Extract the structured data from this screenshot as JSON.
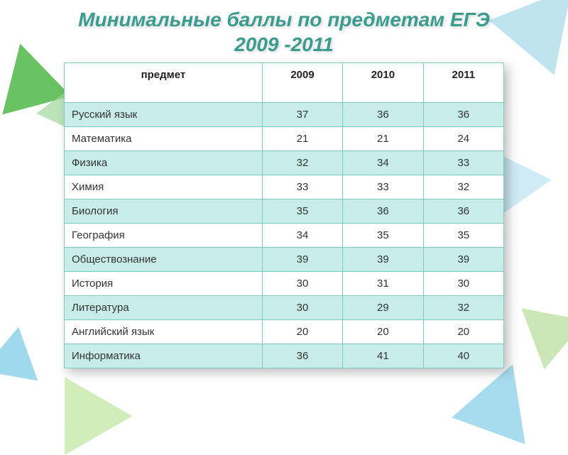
{
  "title_line1": "Минимальные баллы по предметам ЕГЭ",
  "title_line2": "2009 -2011",
  "table": {
    "colors": {
      "band_fill": "#c8ecea",
      "border": "#7fcac0",
      "title_color": "#3a9b8f"
    },
    "columns": [
      "предмет",
      "2009",
      "2010",
      "2011"
    ],
    "rows": [
      [
        "Русский язык",
        "37",
        "36",
        "36"
      ],
      [
        "Математика",
        "21",
        "21",
        "24"
      ],
      [
        "Физика",
        "32",
        "34",
        "33"
      ],
      [
        "Химия",
        "33",
        "33",
        "32"
      ],
      [
        "Биология",
        "35",
        "36",
        "36"
      ],
      [
        "География",
        "34",
        "35",
        "35"
      ],
      [
        "Обществознание",
        "39",
        "39",
        "39"
      ],
      [
        "История",
        "30",
        "31",
        "30"
      ],
      [
        "Литература",
        "30",
        "29",
        "32"
      ],
      [
        "Английский язык",
        "20",
        "20",
        "20"
      ],
      [
        "Информатика",
        "36",
        "41",
        "40"
      ]
    ]
  }
}
